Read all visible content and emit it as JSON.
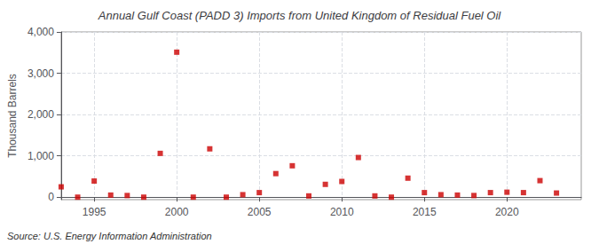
{
  "chart_data": {
    "type": "scatter",
    "title": "Annual Gulf Coast (PADD 3) Imports from United Kingdom of Residual Fuel Oil",
    "ylabel": "Thousand Barrels",
    "annotations": [
      "Source: U.S. Energy Information Administration"
    ],
    "x": [
      1993,
      1994,
      1995,
      1996,
      1997,
      1998,
      1999,
      2000,
      2001,
      2002,
      2003,
      2004,
      2005,
      2006,
      2007,
      2008,
      2009,
      2010,
      2011,
      2012,
      2013,
      2014,
      2015,
      2016,
      2017,
      2018,
      2019,
      2020,
      2021,
      2022,
      2023
    ],
    "values": [
      250,
      0,
      390,
      50,
      40,
      0,
      1060,
      3510,
      0,
      1170,
      0,
      60,
      110,
      570,
      760,
      30,
      310,
      380,
      960,
      30,
      0,
      460,
      110,
      60,
      50,
      40,
      110,
      120,
      110,
      400,
      100
    ],
    "color": "#cc0000",
    "marker": "square",
    "xlim": [
      1993.0,
      2024.5
    ],
    "ylim": [
      -60,
      4000
    ],
    "xticks": [
      1995,
      2000,
      2005,
      2010,
      2015,
      2020
    ],
    "yticks": [
      0,
      {
        "value": 1000,
        "label": "1,000"
      },
      {
        "value": 2000,
        "label": "2,000"
      },
      {
        "value": 3000,
        "label": "3,000"
      },
      {
        "value": 4000,
        "label": "4,000"
      }
    ],
    "grid": true
  }
}
